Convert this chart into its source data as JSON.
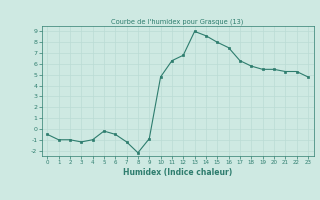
{
  "x": [
    0,
    1,
    2,
    3,
    4,
    5,
    6,
    7,
    8,
    9,
    10,
    11,
    12,
    13,
    14,
    15,
    16,
    17,
    18,
    19,
    20,
    21,
    22,
    23
  ],
  "y": [
    -0.5,
    -1.0,
    -1.0,
    -1.2,
    -1.0,
    -0.2,
    -0.5,
    -1.2,
    -2.2,
    -0.9,
    4.8,
    6.3,
    6.8,
    9.0,
    8.6,
    8.0,
    7.5,
    6.3,
    5.8,
    5.5,
    5.5,
    5.3,
    5.3,
    4.8
  ],
  "title": "Courbe de l'humidex pour Grasque (13)",
  "xlabel": "Humidex (Indice chaleur)",
  "ylim": [
    -2.5,
    9.5
  ],
  "xlim": [
    -0.5,
    23.5
  ],
  "yticks": [
    -2,
    -1,
    0,
    1,
    2,
    3,
    4,
    5,
    6,
    7,
    8,
    9
  ],
  "xticks": [
    0,
    1,
    2,
    3,
    4,
    5,
    6,
    7,
    8,
    9,
    10,
    11,
    12,
    13,
    14,
    15,
    16,
    17,
    18,
    19,
    20,
    21,
    22,
    23
  ],
  "line_color": "#2E7D6E",
  "marker_color": "#2E7D6E",
  "bg_color": "#CEE9E2",
  "grid_color": "#BBDBD4",
  "title_color": "#2E7D6E",
  "label_color": "#2E7D6E",
  "tick_color": "#2E7D6E",
  "spine_color": "#2E7D6E"
}
